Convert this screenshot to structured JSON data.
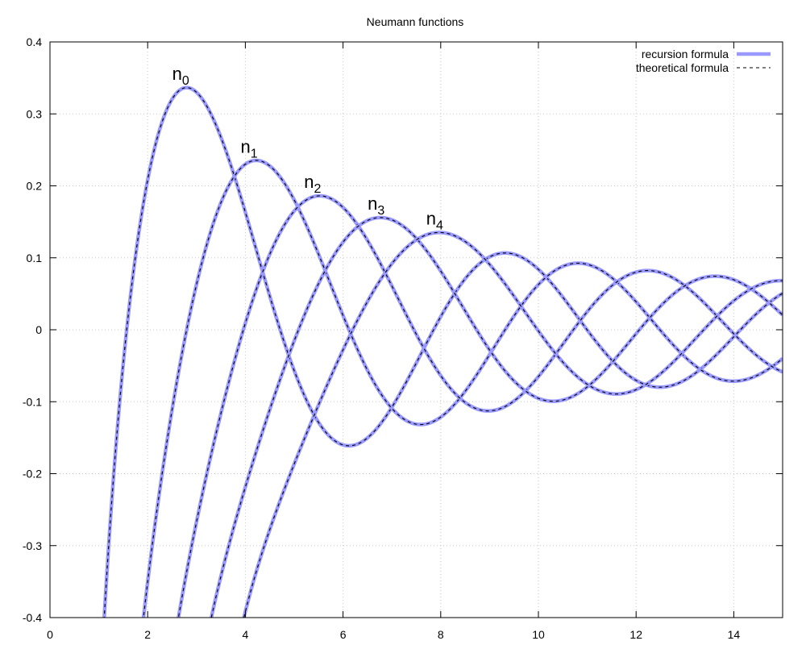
{
  "chart_data": {
    "type": "line",
    "title": "Neumann functions",
    "xlabel": "",
    "ylabel": "",
    "xlim": [
      0,
      15
    ],
    "ylim": [
      -0.4,
      0.4
    ],
    "x_ticks": [
      0,
      2,
      4,
      6,
      8,
      10,
      12,
      14
    ],
    "y_ticks": [
      -0.4,
      -0.3,
      -0.2,
      -0.1,
      0,
      0.1,
      0.2,
      0.3,
      0.4
    ],
    "grid": true,
    "legend_position": "top-right",
    "legend": [
      {
        "label": "recursion formula",
        "color": "#9999ff",
        "style": "solid-thick"
      },
      {
        "label": "theoretical formula",
        "color": "#000000",
        "style": "dashed"
      }
    ],
    "function": "spherical Neumann function n_l(x)",
    "series": [
      {
        "order": 0,
        "label_base": "n",
        "label_sub": "0",
        "peak": [
          2.8,
          0.336
        ]
      },
      {
        "order": 1,
        "label_base": "n",
        "label_sub": "1",
        "peak": [
          4.2,
          0.235
        ]
      },
      {
        "order": 2,
        "label_base": "n",
        "label_sub": "2",
        "peak": [
          5.5,
          0.186
        ]
      },
      {
        "order": 3,
        "label_base": "n",
        "label_sub": "3",
        "peak": [
          6.8,
          0.156
        ]
      },
      {
        "order": 4,
        "label_base": "n",
        "label_sub": "4",
        "peak": [
          8.0,
          0.135
        ]
      }
    ]
  }
}
